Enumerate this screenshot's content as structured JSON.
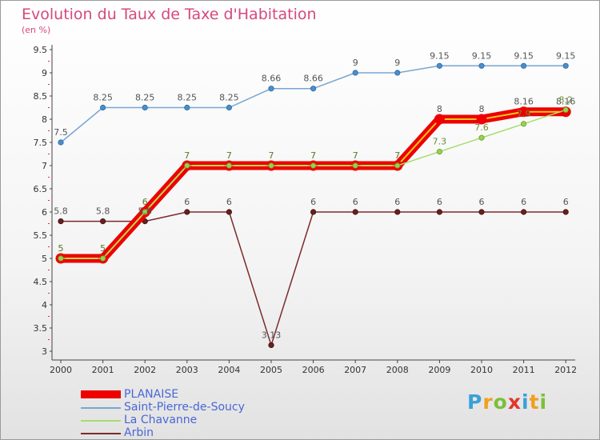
{
  "title": "Evolution du Taux de Taxe d'Habitation",
  "unit": "(en %)",
  "logo": {
    "letters": [
      "P",
      "r",
      "o",
      "x",
      "i",
      "t",
      "i"
    ],
    "colors": [
      "#3aa0d8",
      "#f0a020",
      "#7cbf3a",
      "#e0382e",
      "#3aa0d8",
      "#f0a020",
      "#7cbf3a"
    ]
  },
  "chart_data": {
    "type": "line",
    "x": [
      "2000",
      "2001",
      "2002",
      "2003",
      "2004",
      "2005",
      "2006",
      "2007",
      "2008",
      "2009",
      "2010",
      "2011",
      "2012"
    ],
    "yticks": [
      "3",
      "3.5",
      "4",
      "4.5",
      "5",
      "5.5",
      "6",
      "6.5",
      "7",
      "7.5",
      "8",
      "8.5",
      "9",
      "9.5"
    ],
    "ylim": [
      3,
      9.5
    ],
    "grid": false,
    "legend_position": "bottom-left",
    "series": [
      {
        "name": "PLANAISE",
        "color": "#ee0000",
        "values": [
          5,
          5,
          6,
          7,
          7,
          7,
          7,
          7,
          7,
          8,
          8,
          8.16,
          8.16
        ],
        "labels": [
          "5",
          "5",
          "6",
          "7",
          "7",
          "7",
          "7",
          "7",
          "7",
          "8",
          "8",
          "8.16",
          "8.16"
        ]
      },
      {
        "name": "Saint-Pierre-de-Soucy",
        "color": "#79a6d2",
        "values": [
          7.5,
          8.25,
          8.25,
          8.25,
          8.25,
          8.66,
          8.66,
          9,
          9,
          9.15,
          9.15,
          9.15,
          9.15
        ],
        "labels": [
          "7.5",
          "8.25",
          "8.25",
          "8.25",
          "8.25",
          "8.66",
          "8.66",
          "9",
          "9",
          "9.15",
          "9.15",
          "9.15",
          "9.15"
        ]
      },
      {
        "name": "La Chavanne",
        "color": "#a6dd6e",
        "values": [
          5,
          5,
          6,
          7,
          7,
          7,
          7,
          7,
          7,
          7.3,
          7.6,
          7.9,
          8.2
        ],
        "labels": [
          "5",
          "5",
          "6",
          "7",
          "7",
          "7",
          "7",
          "7",
          "7",
          "7.3",
          "7.6",
          "7.9",
          "8.2"
        ]
      },
      {
        "name": "Arbin",
        "color": "#7b2b2b",
        "values": [
          5.8,
          5.8,
          5.8,
          6,
          6,
          3.13,
          6,
          6,
          6,
          6,
          6,
          6,
          6
        ],
        "labels": [
          "5.8",
          "5.8",
          "5.8",
          "6",
          "6",
          "3.13",
          "6",
          "6",
          "6",
          "6",
          "6",
          "6",
          "6"
        ]
      }
    ]
  }
}
